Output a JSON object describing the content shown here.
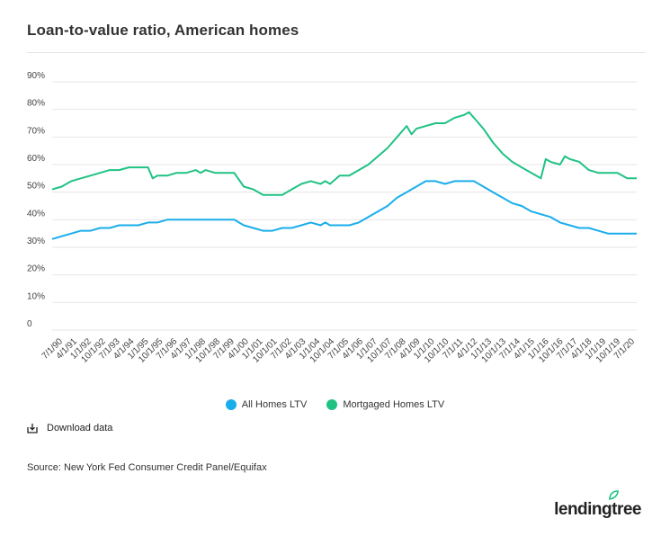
{
  "header": {
    "title": "Loan-to-value ratio, American homes"
  },
  "colors": {
    "all_homes": "#1AADEB",
    "mortgaged": "#20C283",
    "grid": "#e6e6e6",
    "tick_text": "#444444"
  },
  "legend": {
    "all_homes_label": "All Homes LTV",
    "mortgaged_label": "Mortgaged Homes LTV"
  },
  "download": {
    "label": "Download data",
    "icon": "download-icon"
  },
  "source": {
    "text": "Source: New York Fed Consumer Credit Panel/Equifax"
  },
  "logo": {
    "text": "lendingtree"
  },
  "chart_data": {
    "type": "line",
    "title": "Loan-to-value ratio, American homes",
    "xlabel": "",
    "ylabel": "",
    "ylim": [
      0,
      90
    ],
    "yticks": [
      "0",
      "10%",
      "20%",
      "30%",
      "40%",
      "50%",
      "60%",
      "70%",
      "80%",
      "90%"
    ],
    "grid": true,
    "legend_position": "bottom",
    "x_tick_labels": [
      "7/1/90",
      "4/1/91",
      "1/1/92",
      "10/1/92",
      "7/1/93",
      "4/1/94",
      "1/1/95",
      "10/1/95",
      "7/1/96",
      "4/1/97",
      "1/1/98",
      "10/1/98",
      "7/1/99",
      "4/1/00",
      "1/1/01",
      "10/1/01",
      "7/1/02",
      "4/1/03",
      "1/1/04",
      "10/1/04",
      "7/1/05",
      "4/1/06",
      "1/1/07",
      "10/1/07",
      "7/1/08",
      "4/1/09",
      "1/1/10",
      "10/1/10",
      "7/1/11",
      "4/1/12",
      "1/1/13",
      "10/1/13",
      "7/1/14",
      "4/1/15",
      "1/1/16",
      "10/1/16",
      "7/1/17",
      "4/1/18",
      "1/1/19",
      "10/1/19",
      "7/1/20"
    ],
    "x_start": "1990-01-01",
    "x_end": "2020-07-01",
    "series": [
      {
        "name": "All Homes LTV",
        "points": [
          [
            "1990-01-01",
            33
          ],
          [
            "1990-07-01",
            34
          ],
          [
            "1991-01-01",
            35
          ],
          [
            "1991-07-01",
            36
          ],
          [
            "1992-01-01",
            36
          ],
          [
            "1992-07-01",
            37
          ],
          [
            "1993-01-01",
            37
          ],
          [
            "1993-07-01",
            38
          ],
          [
            "1994-01-01",
            38
          ],
          [
            "1994-07-01",
            38
          ],
          [
            "1995-01-01",
            39
          ],
          [
            "1995-07-01",
            39
          ],
          [
            "1996-01-01",
            40
          ],
          [
            "1996-07-01",
            40
          ],
          [
            "1997-01-01",
            40
          ],
          [
            "1997-07-01",
            40
          ],
          [
            "1998-01-01",
            40
          ],
          [
            "1998-07-01",
            40
          ],
          [
            "1999-01-01",
            40
          ],
          [
            "1999-07-01",
            40
          ],
          [
            "2000-01-01",
            38
          ],
          [
            "2000-07-01",
            37
          ],
          [
            "2001-01-01",
            36
          ],
          [
            "2001-07-01",
            36
          ],
          [
            "2002-01-01",
            37
          ],
          [
            "2002-07-01",
            37
          ],
          [
            "2003-01-01",
            38
          ],
          [
            "2003-07-01",
            39
          ],
          [
            "2004-01-01",
            38
          ],
          [
            "2004-04-01",
            39
          ],
          [
            "2004-07-01",
            38
          ],
          [
            "2005-01-01",
            38
          ],
          [
            "2005-07-01",
            38
          ],
          [
            "2006-01-01",
            39
          ],
          [
            "2006-07-01",
            41
          ],
          [
            "2007-01-01",
            43
          ],
          [
            "2007-07-01",
            45
          ],
          [
            "2008-01-01",
            48
          ],
          [
            "2008-07-01",
            50
          ],
          [
            "2009-01-01",
            52
          ],
          [
            "2009-07-01",
            54
          ],
          [
            "2010-01-01",
            54
          ],
          [
            "2010-07-01",
            53
          ],
          [
            "2011-01-01",
            54
          ],
          [
            "2011-07-01",
            54
          ],
          [
            "2012-01-01",
            54
          ],
          [
            "2012-07-01",
            52
          ],
          [
            "2013-01-01",
            50
          ],
          [
            "2013-07-01",
            48
          ],
          [
            "2014-01-01",
            46
          ],
          [
            "2014-07-01",
            45
          ],
          [
            "2015-01-01",
            43
          ],
          [
            "2015-07-01",
            42
          ],
          [
            "2016-01-01",
            41
          ],
          [
            "2016-07-01",
            39
          ],
          [
            "2017-01-01",
            38
          ],
          [
            "2017-07-01",
            37
          ],
          [
            "2018-01-01",
            37
          ],
          [
            "2018-07-01",
            36
          ],
          [
            "2019-01-01",
            35
          ],
          [
            "2019-07-01",
            35
          ],
          [
            "2020-01-01",
            35
          ],
          [
            "2020-07-01",
            35
          ]
        ]
      },
      {
        "name": "Mortgaged Homes LTV",
        "points": [
          [
            "1990-01-01",
            51
          ],
          [
            "1990-07-01",
            52
          ],
          [
            "1991-01-01",
            54
          ],
          [
            "1991-07-01",
            55
          ],
          [
            "1992-01-01",
            56
          ],
          [
            "1992-07-01",
            57
          ],
          [
            "1993-01-01",
            58
          ],
          [
            "1993-07-01",
            58
          ],
          [
            "1994-01-01",
            59
          ],
          [
            "1994-07-01",
            59
          ],
          [
            "1995-01-01",
            59
          ],
          [
            "1995-04-01",
            55
          ],
          [
            "1995-07-01",
            56
          ],
          [
            "1996-01-01",
            56
          ],
          [
            "1996-07-01",
            57
          ],
          [
            "1997-01-01",
            57
          ],
          [
            "1997-07-01",
            58
          ],
          [
            "1997-10-01",
            57
          ],
          [
            "1998-01-01",
            58
          ],
          [
            "1998-07-01",
            57
          ],
          [
            "1999-01-01",
            57
          ],
          [
            "1999-07-01",
            57
          ],
          [
            "2000-01-01",
            52
          ],
          [
            "2000-07-01",
            51
          ],
          [
            "2001-01-01",
            49
          ],
          [
            "2001-07-01",
            49
          ],
          [
            "2002-01-01",
            49
          ],
          [
            "2002-07-01",
            51
          ],
          [
            "2003-01-01",
            53
          ],
          [
            "2003-07-01",
            54
          ],
          [
            "2004-01-01",
            53
          ],
          [
            "2004-04-01",
            54
          ],
          [
            "2004-07-01",
            53
          ],
          [
            "2005-01-01",
            56
          ],
          [
            "2005-07-01",
            56
          ],
          [
            "2006-01-01",
            58
          ],
          [
            "2006-07-01",
            60
          ],
          [
            "2007-01-01",
            63
          ],
          [
            "2007-07-01",
            66
          ],
          [
            "2008-01-01",
            70
          ],
          [
            "2008-07-01",
            74
          ],
          [
            "2008-10-01",
            71
          ],
          [
            "2009-01-01",
            73
          ],
          [
            "2009-07-01",
            74
          ],
          [
            "2010-01-01",
            75
          ],
          [
            "2010-07-01",
            75
          ],
          [
            "2011-01-01",
            77
          ],
          [
            "2011-07-01",
            78
          ],
          [
            "2011-10-01",
            79
          ],
          [
            "2012-01-01",
            77
          ],
          [
            "2012-07-01",
            73
          ],
          [
            "2013-01-01",
            68
          ],
          [
            "2013-07-01",
            64
          ],
          [
            "2014-01-01",
            61
          ],
          [
            "2014-07-01",
            59
          ],
          [
            "2015-01-01",
            57
          ],
          [
            "2015-07-01",
            55
          ],
          [
            "2015-10-01",
            62
          ],
          [
            "2016-01-01",
            61
          ],
          [
            "2016-07-01",
            60
          ],
          [
            "2016-10-01",
            63
          ],
          [
            "2017-01-01",
            62
          ],
          [
            "2017-07-01",
            61
          ],
          [
            "2018-01-01",
            58
          ],
          [
            "2018-07-01",
            57
          ],
          [
            "2019-01-01",
            57
          ],
          [
            "2019-07-01",
            57
          ],
          [
            "2020-01-01",
            55
          ],
          [
            "2020-07-01",
            55
          ]
        ]
      }
    ]
  }
}
